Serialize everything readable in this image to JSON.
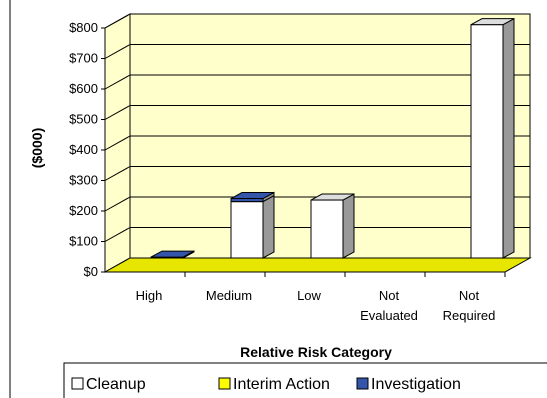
{
  "chart_data": {
    "type": "bar",
    "style": "3d-stacked-column",
    "categories": [
      "High",
      "Medium",
      "Low",
      "Not Evaluated",
      "Not Required"
    ],
    "category_lines": [
      [
        "High"
      ],
      [
        "Medium"
      ],
      [
        "Low"
      ],
      [
        "Not",
        "Evaluated"
      ],
      [
        "Not",
        "Required"
      ]
    ],
    "series": [
      {
        "name": "Cleanup",
        "color": "#ffffff",
        "values": [
          0,
          185,
          190,
          0,
          765
        ]
      },
      {
        "name": "Interim Action",
        "color": "#ffff00",
        "values": [
          0,
          0,
          0,
          0,
          0
        ]
      },
      {
        "name": "Investigation",
        "color": "#3355aa",
        "values": [
          3,
          10,
          0,
          0,
          0
        ]
      }
    ],
    "ylabel": "($000)",
    "xlabel": "Relative Risk Category",
    "ylim": [
      0,
      800
    ],
    "ytick_step": 100,
    "ytick_prefix": "$",
    "wall_color": "#ffffcc",
    "floor_color": "#e6e600",
    "side_color": "#999999",
    "grid": true,
    "legend_position": "bottom"
  }
}
